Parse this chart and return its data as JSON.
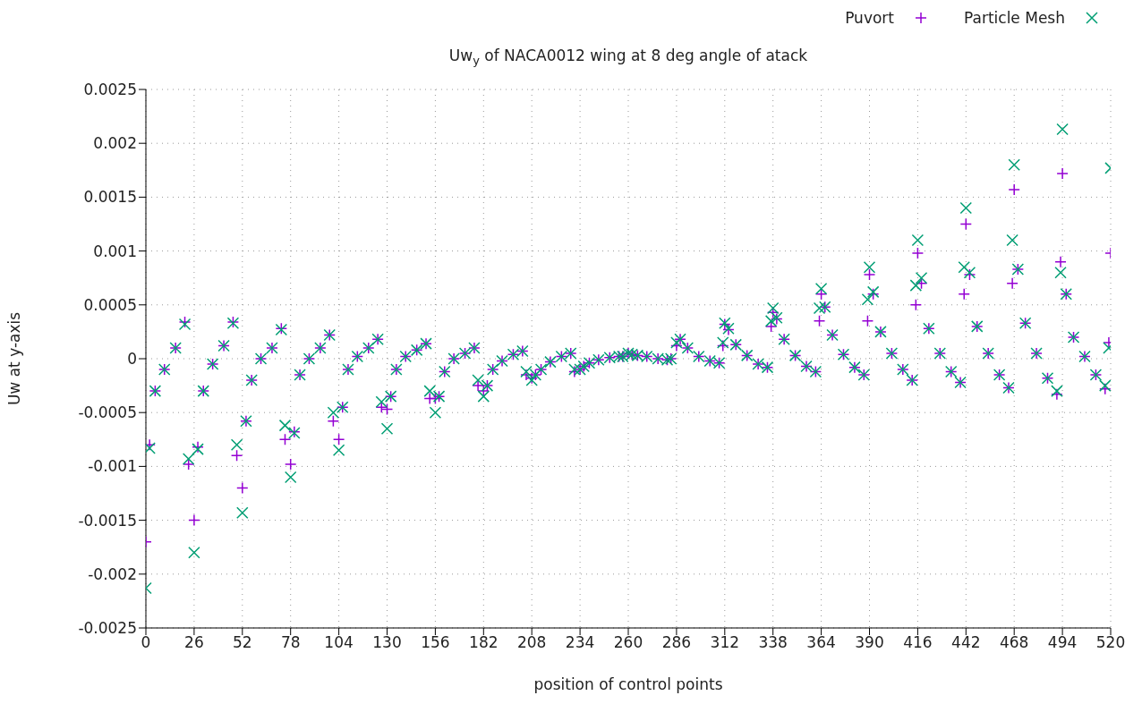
{
  "chart_data": {
    "type": "scatter",
    "title": "Uw$_{y}$ of NACA0012 wing at 8 deg angle of atack",
    "xlabel": "position of control points",
    "ylabel": "Uw at y-axis",
    "x": [
      0,
      2,
      5,
      10,
      16,
      21,
      23,
      26,
      28,
      31,
      36,
      42,
      47,
      49,
      52,
      54,
      57,
      62,
      68,
      73,
      75,
      78,
      80,
      83,
      88,
      94,
      99,
      101,
      104,
      106,
      109,
      114,
      120,
      125,
      127,
      130,
      132,
      135,
      140,
      146,
      151,
      153,
      156,
      158,
      161,
      166,
      172,
      177,
      179,
      182,
      184,
      187,
      192,
      198,
      203,
      205,
      208,
      210,
      213,
      218,
      224,
      229,
      231,
      234,
      236,
      239,
      244,
      250,
      255,
      257,
      260,
      262,
      265,
      270,
      276,
      281,
      283,
      286,
      288,
      292,
      298,
      304,
      309,
      311,
      312,
      314,
      318,
      324,
      330,
      335,
      337,
      338,
      340,
      344,
      350,
      356,
      361,
      363,
      364,
      366,
      370,
      376,
      382,
      387,
      389,
      390,
      392,
      396,
      402,
      408,
      413,
      415,
      416,
      418,
      422,
      428,
      434,
      439,
      441,
      442,
      444,
      448,
      454,
      460,
      465,
      467,
      468,
      470,
      474,
      480,
      486,
      491,
      493,
      494,
      496,
      500,
      506,
      512,
      517,
      519,
      520
    ],
    "series": [
      {
        "name": "Puvort",
        "color": "#9400d3",
        "marker": "cross",
        "values": [
          -0.0017,
          -0.0008,
          -0.0003,
          -0.0001,
          0.0001,
          0.00034,
          -0.00098,
          -0.0015,
          -0.00082,
          -0.0003,
          -5e-05,
          0.00012,
          0.00034,
          -0.0009,
          -0.0012,
          -0.00058,
          -0.0002,
          0,
          0.0001,
          0.00028,
          -0.00075,
          -0.00098,
          -0.00068,
          -0.00015,
          0,
          0.0001,
          0.00022,
          -0.00058,
          -0.00075,
          -0.00045,
          -0.0001,
          2e-05,
          0.0001,
          0.00018,
          -0.00045,
          -0.00047,
          -0.00035,
          -0.0001,
          2e-05,
          8e-05,
          0.00014,
          -0.00037,
          -0.00037,
          -0.00035,
          -0.00012,
          0,
          5e-05,
          0.0001,
          -0.00025,
          -0.0003,
          -0.00025,
          -0.0001,
          -2e-05,
          4e-05,
          7e-05,
          -0.00015,
          -0.00018,
          -0.00015,
          -0.0001,
          -3e-05,
          2e-05,
          5e-05,
          -0.00012,
          -0.0001,
          -7e-05,
          -4e-05,
          -1e-05,
          1e-05,
          2e-05,
          2e-05,
          5e-05,
          4e-05,
          3e-05,
          2e-05,
          0,
          -1e-05,
          0,
          0.00012,
          0.00018,
          0.0001,
          2e-05,
          -2e-05,
          -4e-05,
          0.00012,
          0.00032,
          0.00027,
          0.00013,
          3e-05,
          -5e-05,
          -8e-05,
          0.0003,
          0.00043,
          0.00037,
          0.00018,
          3e-05,
          -7e-05,
          -0.00012,
          0.00035,
          0.0006,
          0.00048,
          0.00022,
          4e-05,
          -8e-05,
          -0.00015,
          0.00035,
          0.00078,
          0.0006,
          0.00025,
          5e-05,
          -0.0001,
          -0.0002,
          0.0005,
          0.00098,
          0.0007,
          0.00028,
          5e-05,
          -0.00012,
          -0.00022,
          0.0006,
          0.00125,
          0.00078,
          0.0003,
          5e-05,
          -0.00015,
          -0.00027,
          0.0007,
          0.00157,
          0.00083,
          0.00033,
          5e-05,
          -0.00018,
          -0.00033,
          0.0009,
          0.00172,
          0.0006,
          0.0002,
          2e-05,
          -0.00015,
          -0.00028,
          0.00015,
          0.00098
        ]
      },
      {
        "name": "Particle Mesh",
        "color": "#009e73",
        "marker": "cross",
        "values": [
          -0.00213,
          -0.00083,
          -0.0003,
          -0.0001,
          0.0001,
          0.00032,
          -0.00093,
          -0.0018,
          -0.00084,
          -0.0003,
          -5e-05,
          0.00012,
          0.00033,
          -0.0008,
          -0.00143,
          -0.00058,
          -0.0002,
          0,
          0.0001,
          0.00027,
          -0.00062,
          -0.0011,
          -0.00069,
          -0.00015,
          0,
          0.0001,
          0.00022,
          -0.0005,
          -0.00085,
          -0.00045,
          -0.0001,
          2e-05,
          0.0001,
          0.00018,
          -0.0004,
          -0.00065,
          -0.00035,
          -0.0001,
          2e-05,
          8e-05,
          0.00014,
          -0.0003,
          -0.0005,
          -0.00035,
          -0.00012,
          0,
          5e-05,
          0.0001,
          -0.0002,
          -0.00035,
          -0.00025,
          -0.0001,
          -2e-05,
          4e-05,
          7e-05,
          -0.00012,
          -0.0002,
          -0.00015,
          -0.0001,
          -3e-05,
          2e-05,
          5e-05,
          -0.0001,
          -0.0001,
          -7e-05,
          -4e-05,
          -1e-05,
          1e-05,
          2e-05,
          2e-05,
          5e-05,
          4e-05,
          3e-05,
          2e-05,
          0,
          -1e-05,
          0,
          0.00015,
          0.00018,
          0.0001,
          2e-05,
          -2e-05,
          -4e-05,
          0.00015,
          0.00033,
          0.00028,
          0.00013,
          3e-05,
          -5e-05,
          -8e-05,
          0.00035,
          0.00047,
          0.00038,
          0.00018,
          3e-05,
          -7e-05,
          -0.00012,
          0.00047,
          0.00065,
          0.00048,
          0.00022,
          4e-05,
          -8e-05,
          -0.00015,
          0.00055,
          0.00085,
          0.00062,
          0.00025,
          5e-05,
          -0.0001,
          -0.0002,
          0.00068,
          0.0011,
          0.00075,
          0.00028,
          5e-05,
          -0.00012,
          -0.00022,
          0.00085,
          0.0014,
          0.0008,
          0.0003,
          5e-05,
          -0.00015,
          -0.00027,
          0.0011,
          0.0018,
          0.00083,
          0.00033,
          5e-05,
          -0.00018,
          -0.0003,
          0.0008,
          0.00213,
          0.0006,
          0.0002,
          2e-05,
          -0.00015,
          -0.00025,
          0.0001,
          0.00177
        ]
      }
    ],
    "xlim": [
      0,
      520
    ],
    "xticks": [
      0,
      26,
      52,
      78,
      104,
      130,
      156,
      182,
      208,
      234,
      260,
      286,
      312,
      338,
      364,
      390,
      416,
      442,
      468,
      494,
      520
    ],
    "ylim": [
      -0.0025,
      0.0025
    ],
    "yticks": [
      -0.0025,
      -0.002,
      -0.0015,
      -0.001,
      -0.0005,
      0,
      0.0005,
      0.001,
      0.0015,
      0.002,
      0.0025
    ],
    "grid": true,
    "legend": "top right"
  }
}
